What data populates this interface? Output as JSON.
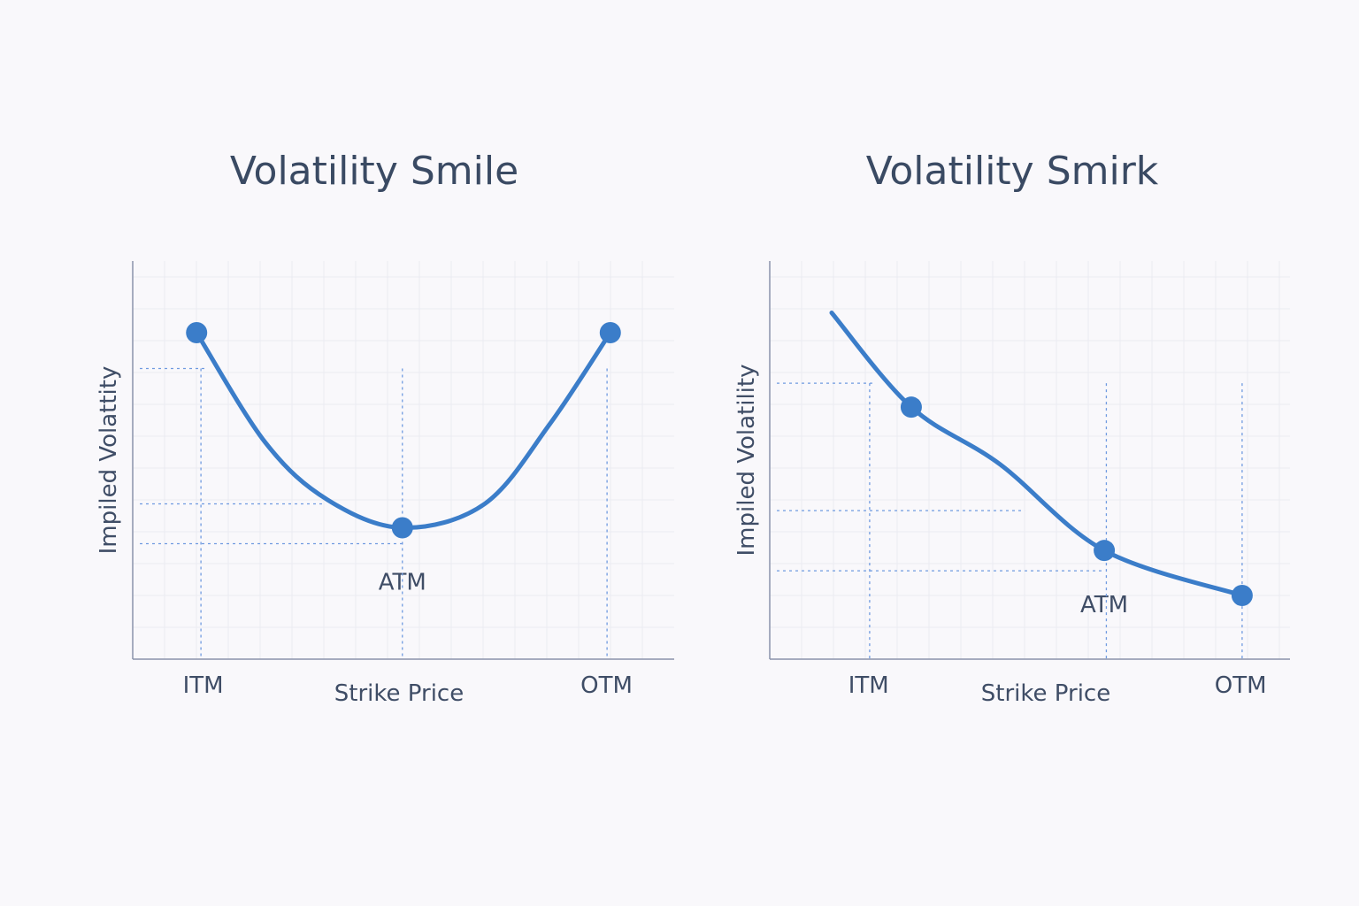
{
  "chart_data": [
    {
      "type": "line",
      "title": "Volatility Smile",
      "xlabel": "Strike Price",
      "ylabel": "Impiled Volattity",
      "xlim": [
        0,
        10
      ],
      "ylim": [
        0,
        10
      ],
      "grid": true,
      "x_tick_labels": [
        {
          "x": 1.3,
          "label": "ITM"
        },
        {
          "x": 8.75,
          "label": "OTM"
        }
      ],
      "series": [
        {
          "x": [
            1.18,
            2.45,
            3.6,
            4.98,
            6.5,
            7.7,
            8.82
          ],
          "y": [
            8.2,
            5.44,
            4.0,
            3.3,
            3.9,
            5.9,
            8.2
          ]
        }
      ],
      "markers": [
        {
          "x": 1.18,
          "y": 8.2
        },
        {
          "x": 4.98,
          "y": 3.3,
          "label": "ATM"
        },
        {
          "x": 8.82,
          "y": 8.2
        }
      ],
      "guides_horizontal": [
        7.3,
        3.9,
        2.9
      ],
      "guides_vertical": [
        1.26,
        4.98,
        8.76
      ],
      "color": "#3b7dc9"
    },
    {
      "type": "line",
      "title": "Volatility Smirk",
      "xlabel": "Strike Price",
      "ylabel": "Impiled Volatility",
      "xlim": [
        0,
        10
      ],
      "ylim": [
        0,
        10
      ],
      "grid": true,
      "x_tick_labels": [
        {
          "x": 1.9,
          "label": "ITM"
        },
        {
          "x": 9.05,
          "label": "OTM"
        }
      ],
      "series": [
        {
          "x": [
            1.19,
            2.72,
            4.42,
            6.43,
            9.08
          ],
          "y": [
            8.7,
            6.33,
            4.9,
            2.73,
            1.6
          ]
        }
      ],
      "markers": [
        {
          "x": 2.72,
          "y": 6.33
        },
        {
          "x": 6.43,
          "y": 2.73,
          "label": "ATM"
        },
        {
          "x": 9.08,
          "y": 1.6
        }
      ],
      "guides_horizontal": [
        6.93,
        3.73,
        2.22
      ],
      "guides_vertical": [
        1.92,
        6.47,
        9.08
      ],
      "color": "#3b7dc9"
    }
  ]
}
